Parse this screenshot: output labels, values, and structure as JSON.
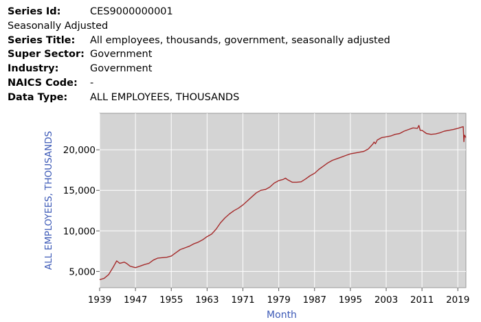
{
  "meta": {
    "series_id_label": "Series Id:",
    "series_id": "CES9000000001",
    "adjustment": "Seasonally Adjusted",
    "series_title_label": "Series Title:",
    "series_title": "All employees, thousands, government, seasonally adjusted",
    "super_sector_label": "Super Sector:",
    "super_sector": "Government",
    "industry_label": "Industry:",
    "industry": "Government",
    "naics_label": "NAICS Code:",
    "naics": "-",
    "data_type_label": "Data Type:",
    "data_type": "ALL EMPLOYEES, THOUSANDS"
  },
  "colors": {
    "plot_bg": "#d4d4d4",
    "grid": "#ffffff",
    "line": "#a52a2a",
    "axis_title": "#3b58b6",
    "tick_text": "#000000"
  },
  "chart_data": {
    "type": "line",
    "title": "",
    "xlabel": "Month",
    "ylabel": "ALL EMPLOYEES, THOUSANDS",
    "xlim": [
      1939.0,
      2020.8
    ],
    "ylim": [
      3000,
      24500
    ],
    "x_ticks": [
      1939,
      1947,
      1955,
      1963,
      1971,
      1979,
      1987,
      1995,
      2003,
      2011,
      2019
    ],
    "x_tick_labels": [
      "1939",
      "1947",
      "1955",
      "1963",
      "1971",
      "1979",
      "1987",
      "1995",
      "2003",
      "2011",
      "2019"
    ],
    "y_ticks": [
      5000,
      10000,
      15000,
      20000
    ],
    "y_tick_labels": [
      "5,000",
      "10,000",
      "15,000",
      "20,000"
    ],
    "grid": true,
    "series": [
      {
        "x": [
          1939.0,
          1940.0,
          1941.0,
          1942.0,
          1942.8,
          1943.5,
          1944.5,
          1945.0,
          1945.8,
          1946.5,
          1947.0,
          1948.0,
          1949.0,
          1950.0,
          1951.0,
          1952.0,
          1953.0,
          1954.0,
          1955.0,
          1956.0,
          1957.0,
          1958.0,
          1959.0,
          1960.0,
          1961.0,
          1962.0,
          1963.0,
          1964.0,
          1965.0,
          1966.0,
          1967.0,
          1968.0,
          1969.0,
          1970.0,
          1971.0,
          1972.0,
          1973.0,
          1974.0,
          1975.0,
          1976.0,
          1977.0,
          1978.0,
          1979.0,
          1980.0,
          1980.5,
          1981.0,
          1982.0,
          1983.0,
          1984.0,
          1985.0,
          1986.0,
          1987.0,
          1988.0,
          1989.0,
          1990.0,
          1991.0,
          1992.0,
          1993.0,
          1994.0,
          1995.0,
          1996.0,
          1997.0,
          1998.0,
          1999.0,
          2000.0,
          2000.3,
          2000.6,
          2001.0,
          2002.0,
          2003.0,
          2004.0,
          2005.0,
          2006.0,
          2007.0,
          2008.0,
          2009.0,
          2010.0,
          2010.3,
          2010.6,
          2011.0,
          2012.0,
          2013.0,
          2014.0,
          2015.0,
          2016.0,
          2017.0,
          2018.0,
          2019.0,
          2019.9,
          2020.2,
          2020.35,
          2020.5,
          2020.8
        ],
        "values": [
          3990,
          4150,
          4600,
          5500,
          6300,
          6000,
          6150,
          6000,
          5650,
          5550,
          5470,
          5650,
          5850,
          6000,
          6400,
          6650,
          6700,
          6750,
          6900,
          7300,
          7700,
          7900,
          8100,
          8400,
          8600,
          8900,
          9300,
          9600,
          10200,
          11000,
          11600,
          12100,
          12500,
          12800,
          13200,
          13700,
          14200,
          14700,
          15000,
          15100,
          15400,
          15900,
          16200,
          16350,
          16500,
          16300,
          16000,
          16000,
          16050,
          16400,
          16800,
          17100,
          17600,
          18000,
          18400,
          18700,
          18900,
          19100,
          19300,
          19500,
          19600,
          19700,
          19800,
          20100,
          20700,
          20950,
          20750,
          21200,
          21500,
          21600,
          21700,
          21900,
          22000,
          22300,
          22500,
          22700,
          22650,
          23000,
          22400,
          22400,
          22000,
          21900,
          21950,
          22100,
          22300,
          22400,
          22500,
          22650,
          22800,
          22850,
          21000,
          21800,
          21500
        ]
      }
    ]
  }
}
